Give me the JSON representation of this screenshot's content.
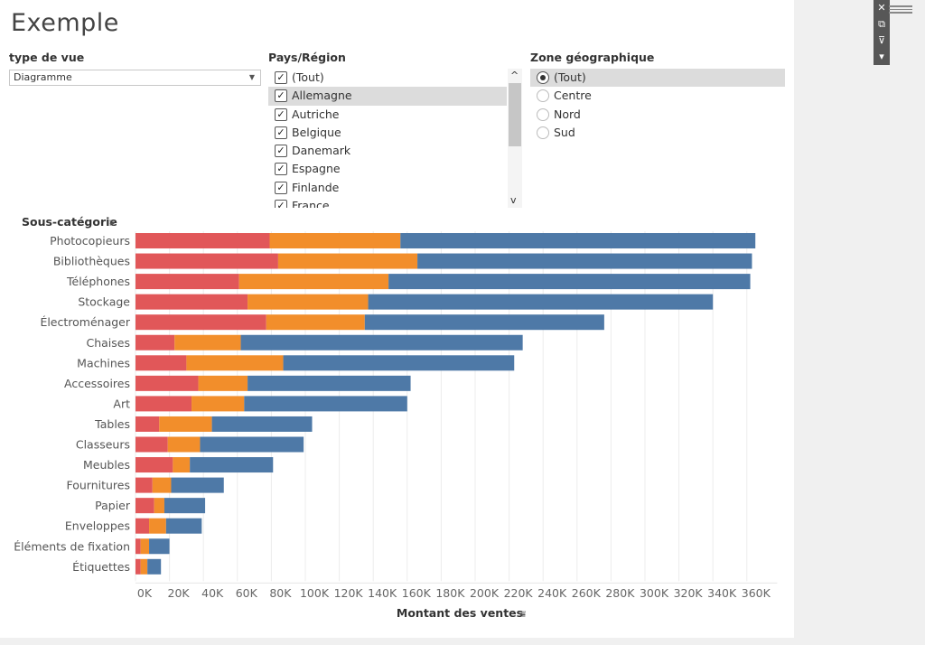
{
  "title": "Exemple",
  "filters": {
    "type_de_vue": {
      "label": "type de vue",
      "value": "Diagramme",
      "arrow": "▼"
    },
    "pays": {
      "label": "Pays/Région",
      "items": [
        "(Tout)",
        "Allemagne",
        "Autriche",
        "Belgique",
        "Danemark",
        "Espagne",
        "Finlande",
        "France"
      ],
      "checked_mark": "✓",
      "selected_index": 1,
      "scroll_up": "^",
      "scroll_down": "v"
    },
    "zone": {
      "label": "Zone géographique",
      "items": [
        "(Tout)",
        "Centre",
        "Nord",
        "Sud"
      ],
      "selected_index": 0
    }
  },
  "toolbar": {
    "icons": [
      "close-icon",
      "popout-icon",
      "filter-icon",
      "dropdown-icon"
    ],
    "glyphs": [
      "✕",
      "⧉",
      "⊽",
      "▾"
    ]
  },
  "chart_data": {
    "type": "bar",
    "stacked": true,
    "orientation": "horizontal",
    "row_header": "Sous-catégorie",
    "xlabel": "Montant des ventes",
    "sort_icon": "⩸",
    "xlim": [
      0,
      380000
    ],
    "ticks": [
      0,
      20000,
      40000,
      60000,
      80000,
      100000,
      120000,
      140000,
      160000,
      180000,
      200000,
      220000,
      240000,
      260000,
      280000,
      300000,
      320000,
      340000,
      360000
    ],
    "tick_labels": [
      "0K",
      "20K",
      "40K",
      "60K",
      "80K",
      "100K",
      "120K",
      "140K",
      "160K",
      "180K",
      "200K",
      "220K",
      "240K",
      "260K",
      "280K",
      "300K",
      "320K",
      "340K",
      "360K"
    ],
    "categories": [
      "Photocopieurs",
      "Bibliothèques",
      "Téléphones",
      "Stockage",
      "Électroménager",
      "Chaises",
      "Machines",
      "Accessoires",
      "Art",
      "Tables",
      "Classeurs",
      "Meubles",
      "Fournitures",
      "Papier",
      "Enveloppes",
      "Éléments de fixation",
      "Étiquettes"
    ],
    "series": [
      {
        "color": "#e15759",
        "values": [
          79000,
          84000,
          61000,
          66000,
          77000,
          23000,
          30000,
          37000,
          33000,
          14000,
          19000,
          22000,
          10000,
          11000,
          8000,
          3000,
          3000
        ]
      },
      {
        "color": "#f28e2b",
        "values": [
          77000,
          82000,
          88000,
          71000,
          58000,
          39000,
          57000,
          29000,
          31000,
          31000,
          19000,
          10000,
          11000,
          6000,
          10000,
          5000,
          4000
        ]
      },
      {
        "color": "#4e79a7",
        "values": [
          209000,
          197000,
          213000,
          203000,
          141000,
          166000,
          136000,
          96000,
          96000,
          59000,
          61000,
          49000,
          31000,
          24000,
          21000,
          12000,
          8000
        ]
      }
    ],
    "grid": true,
    "grid_color": "#ececec"
  }
}
